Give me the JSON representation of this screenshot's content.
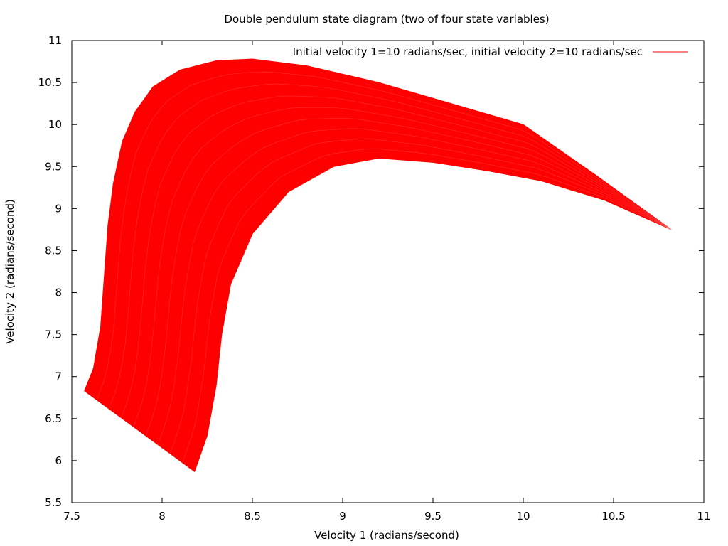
{
  "chart_data": {
    "type": "line",
    "title": "Double pendulum state diagram (two of four state variables)",
    "xlabel": "Velocity 1 (radians/second)",
    "ylabel": "Velocity 2 (radians/second)",
    "xlim": [
      7.5,
      11
    ],
    "ylim": [
      5.5,
      11
    ],
    "xticks": [
      "7.5",
      "8",
      "8.5",
      "9",
      "9.5",
      "10",
      "10.5",
      "11"
    ],
    "yticks": [
      "5.5",
      "6",
      "6.5",
      "7",
      "7.5",
      "8",
      "8.5",
      "9",
      "9.5",
      "10",
      "10.5",
      "11"
    ],
    "grid": false,
    "legend_position": "top-right",
    "series": [
      {
        "name": "Initial velocity 1=10 radians/sec, initial velocity 2=10 radians/sec",
        "color": "#ff0000",
        "outer_boundary": [
          [
            7.57,
            6.83
          ],
          [
            7.62,
            7.1
          ],
          [
            7.66,
            7.6
          ],
          [
            7.68,
            8.2
          ],
          [
            7.7,
            8.8
          ],
          [
            7.73,
            9.3
          ],
          [
            7.78,
            9.8
          ],
          [
            7.85,
            10.15
          ],
          [
            7.95,
            10.45
          ],
          [
            8.1,
            10.65
          ],
          [
            8.3,
            10.76
          ],
          [
            8.5,
            10.78
          ],
          [
            8.8,
            10.7
          ],
          [
            9.2,
            10.5
          ],
          [
            9.6,
            10.25
          ],
          [
            10.0,
            10.0
          ],
          [
            10.4,
            9.4
          ],
          [
            10.82,
            8.75
          ]
        ],
        "inner_boundary": [
          [
            8.18,
            5.87
          ],
          [
            8.25,
            6.3
          ],
          [
            8.3,
            6.9
          ],
          [
            8.33,
            7.5
          ],
          [
            8.38,
            8.1
          ],
          [
            8.5,
            8.7
          ],
          [
            8.7,
            9.2
          ],
          [
            8.95,
            9.5
          ],
          [
            9.2,
            9.6
          ],
          [
            9.5,
            9.55
          ],
          [
            9.8,
            9.45
          ],
          [
            10.1,
            9.33
          ],
          [
            10.45,
            9.1
          ],
          [
            10.82,
            8.75
          ]
        ],
        "lower_edge": [
          [
            7.57,
            6.83
          ],
          [
            7.9,
            6.35
          ],
          [
            8.18,
            5.87
          ]
        ]
      }
    ]
  }
}
